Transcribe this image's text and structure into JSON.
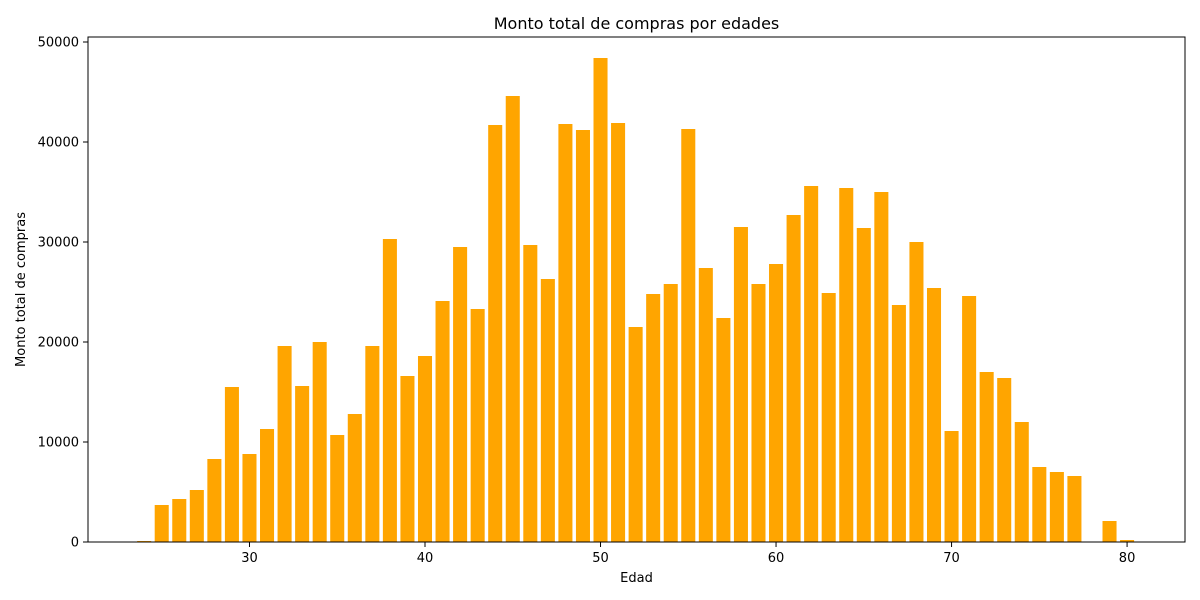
{
  "chart_data": {
    "type": "bar",
    "title": "Monto total de compras por edades",
    "xlabel": "Edad",
    "ylabel": "Monto total de compras",
    "xlim": [
      20.8,
      83.3
    ],
    "ylim": [
      0,
      50500
    ],
    "xticks": [
      30,
      40,
      50,
      60,
      70,
      80
    ],
    "yticks": [
      0,
      10000,
      20000,
      30000,
      40000,
      50000
    ],
    "bar_color": "#FFA500",
    "grid": false,
    "x": [
      24,
      25,
      26,
      27,
      28,
      29,
      30,
      31,
      32,
      33,
      34,
      35,
      36,
      37,
      38,
      39,
      40,
      41,
      42,
      43,
      44,
      45,
      46,
      47,
      48,
      49,
      50,
      51,
      52,
      53,
      54,
      55,
      56,
      57,
      58,
      59,
      60,
      61,
      62,
      63,
      64,
      65,
      66,
      67,
      68,
      69,
      70,
      71,
      72,
      73,
      74,
      75,
      76,
      77,
      79,
      80
    ],
    "values": [
      100,
      3700,
      4300,
      5200,
      8300,
      15500,
      8800,
      11300,
      19600,
      15600,
      20000,
      10700,
      12800,
      19600,
      30300,
      16600,
      18600,
      24100,
      29500,
      23300,
      41700,
      44600,
      29700,
      26300,
      41800,
      41200,
      48400,
      41900,
      21500,
      24800,
      25800,
      41300,
      27400,
      22400,
      31500,
      25800,
      27800,
      32700,
      35600,
      24900,
      35400,
      31400,
      35000,
      23700,
      30000,
      25400,
      11100,
      24600,
      17000,
      16400,
      12000,
      7500,
      7000,
      6600,
      2100,
      200
    ]
  }
}
